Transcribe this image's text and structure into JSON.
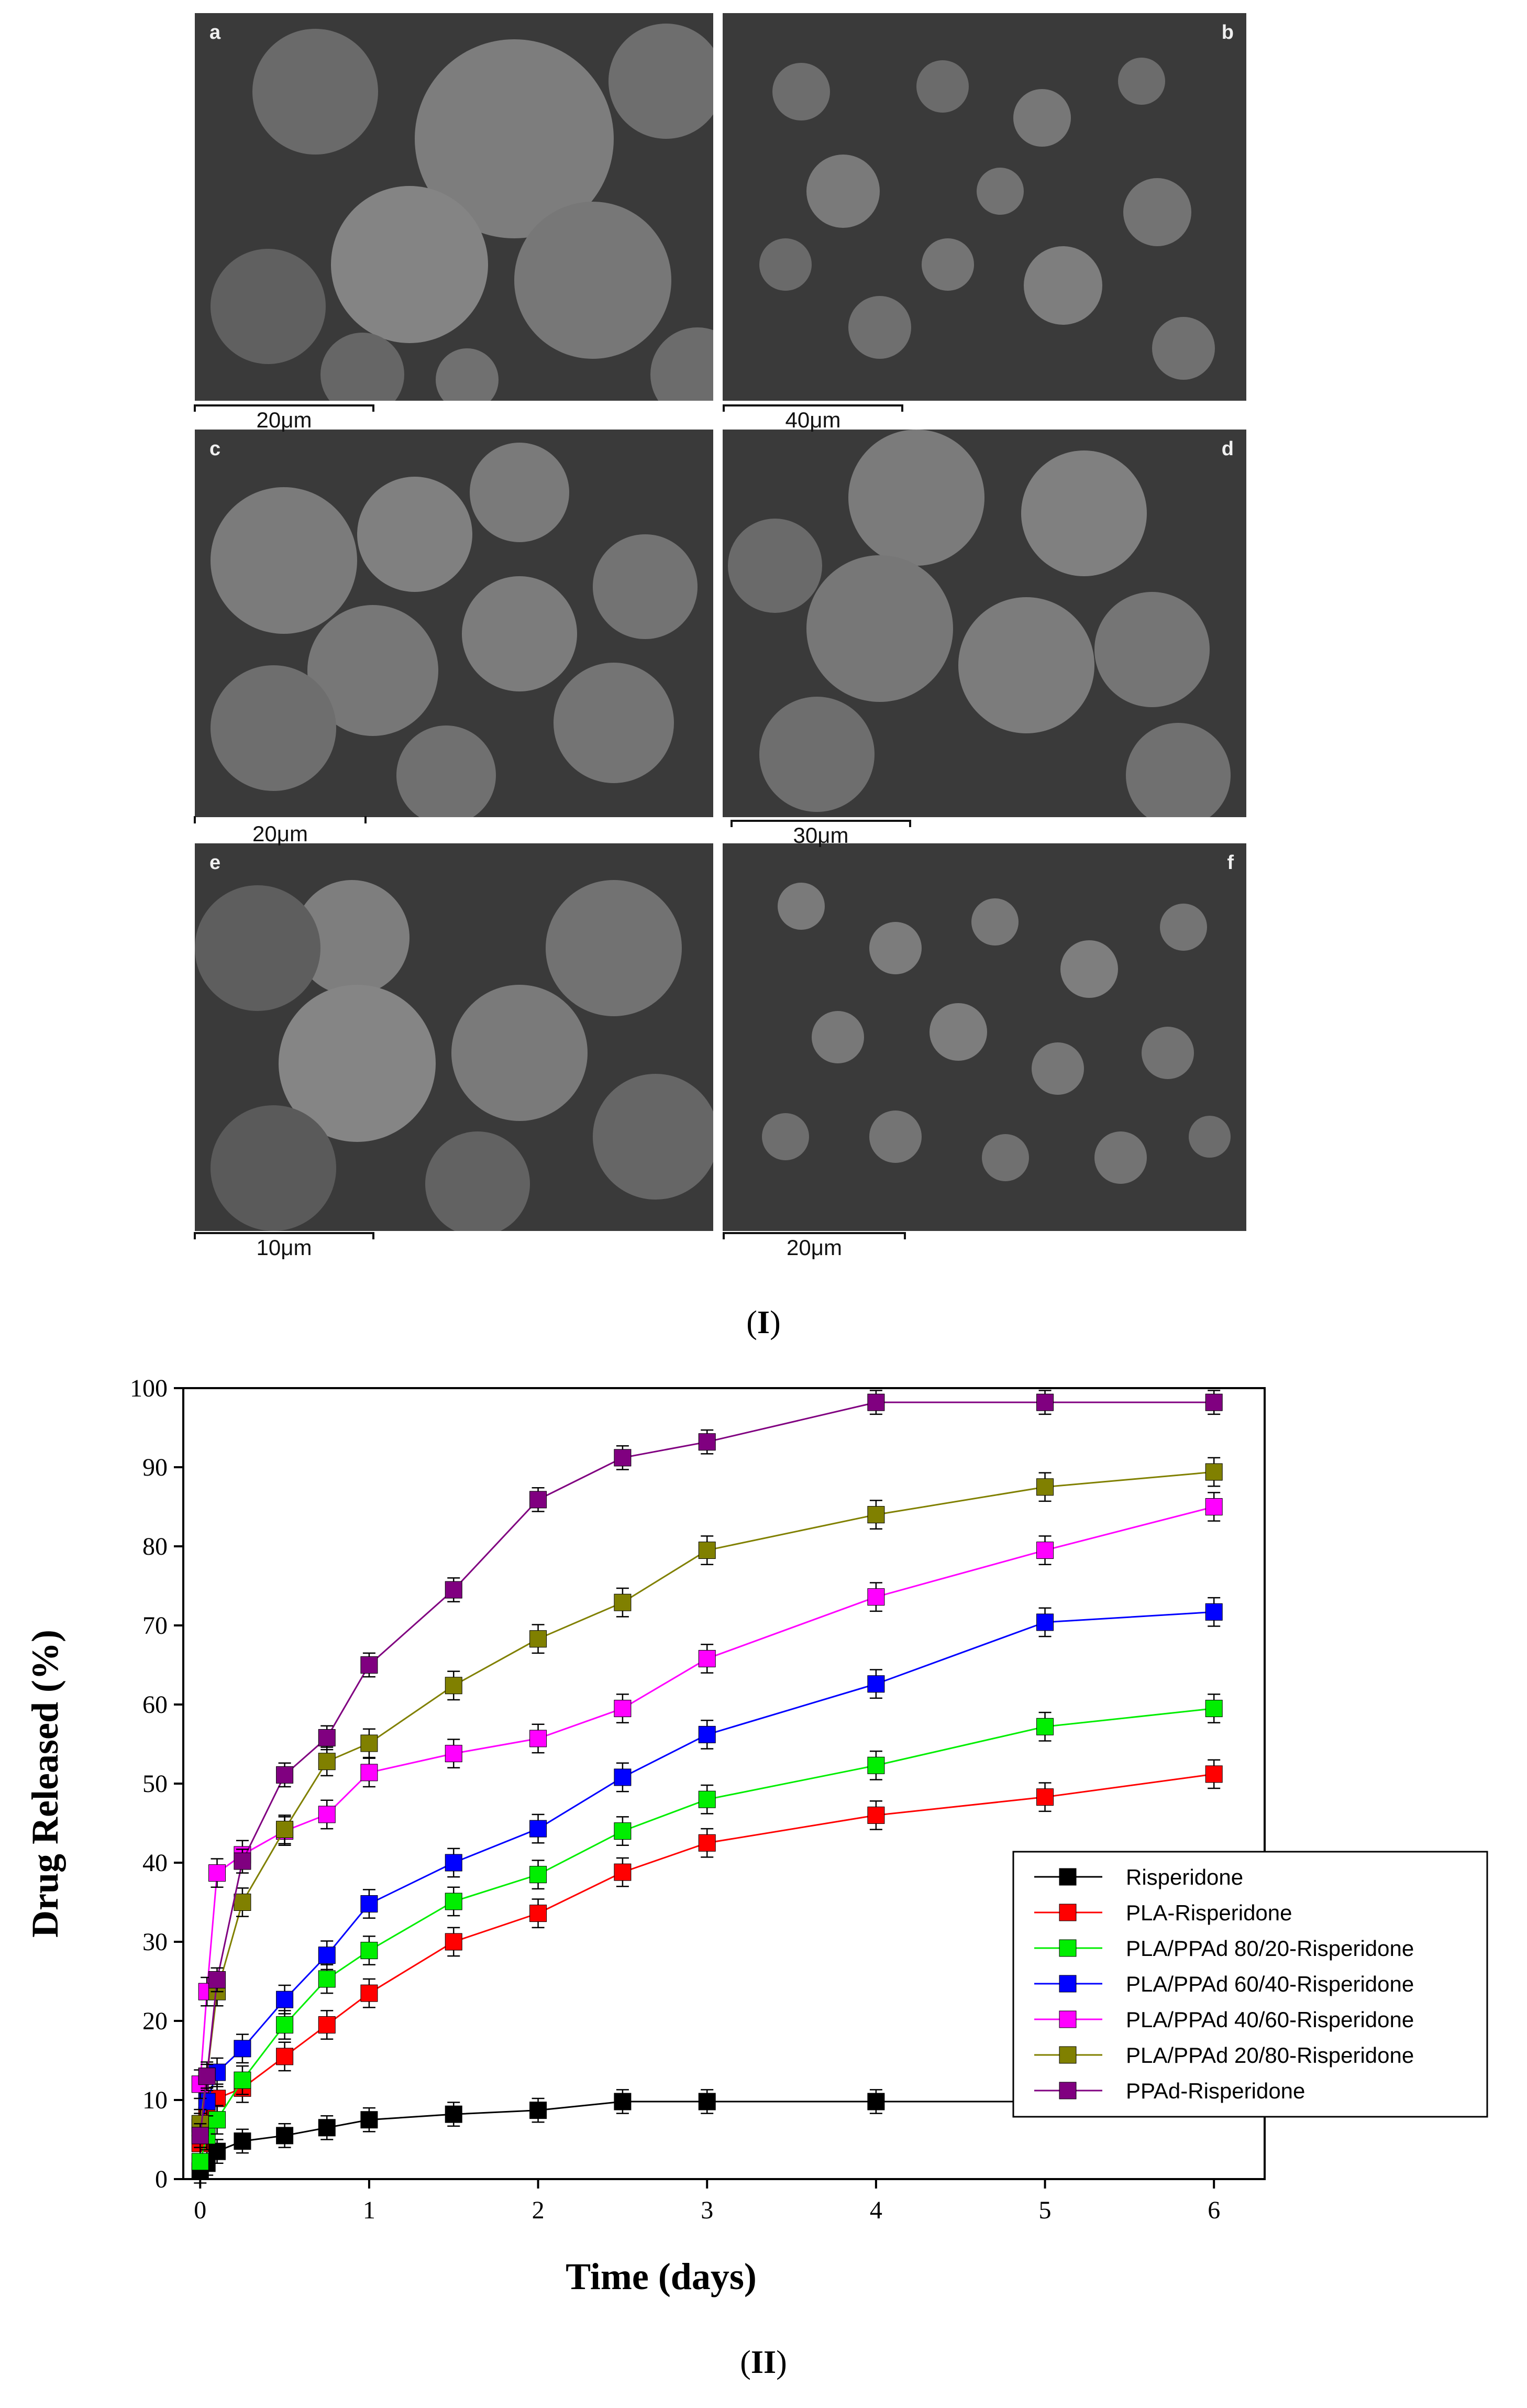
{
  "figure_I": {
    "panels": [
      {
        "letter": "a",
        "scale_label": "20μm"
      },
      {
        "letter": "b",
        "scale_label": "40μm"
      },
      {
        "letter": "c",
        "scale_label": "20μm"
      },
      {
        "letter": "d",
        "scale_label": "30μm"
      },
      {
        "letter": "e",
        "scale_label": "10μm"
      },
      {
        "letter": "f",
        "scale_label": "20μm"
      }
    ],
    "label_open": "(",
    "label_text": "I",
    "label_close": ")"
  },
  "figure_II": {
    "label_open": "(",
    "label_text": "II",
    "label_close": ")"
  },
  "colors": {
    "sem_background": "#3a3a3a",
    "sem_particle": "#8a8a8a"
  },
  "chart_data": {
    "type": "line",
    "title": "",
    "xlabel": "Time (days)",
    "ylabel": "Drug Released (%)",
    "xlim": [
      -0.1,
      6.3
    ],
    "ylim": [
      0,
      100
    ],
    "xticks": [
      0,
      1,
      2,
      3,
      4,
      5,
      6
    ],
    "yticks": [
      0,
      10,
      20,
      30,
      40,
      50,
      60,
      70,
      80,
      90,
      100
    ],
    "grid": false,
    "legend_position": "center-right",
    "x": [
      0,
      0.04,
      0.1,
      0.25,
      0.5,
      0.75,
      1,
      1.5,
      2,
      2.5,
      3,
      4,
      5,
      6
    ],
    "series": [
      {
        "name": "Risperidone",
        "color": "#000000",
        "values": [
          1,
          2,
          3.5,
          4.8,
          5.5,
          6.5,
          7.5,
          8.2,
          8.7,
          9.8,
          9.8,
          9.8,
          9.8,
          9.8
        ],
        "error": 1.5
      },
      {
        "name": "PLA-Risperidone",
        "color": "#ff0000",
        "values": [
          4.5,
          8,
          10.2,
          11.5,
          15.5,
          19.5,
          23.5,
          30,
          33.6,
          38.8,
          42.5,
          46,
          48.3,
          51.2
        ],
        "error": 1.8
      },
      {
        "name": "PLA/PPAd 80/20-Risperidone",
        "color": "#00ee00",
        "values": [
          2.2,
          5.5,
          7.5,
          12.5,
          19.5,
          25.3,
          28.9,
          35.1,
          38.5,
          44,
          48,
          52.3,
          57.2,
          59.5
        ],
        "error": 1.8
      },
      {
        "name": "PLA/PPAd 60/40-Risperidone",
        "color": "#0000ff",
        "values": [
          6.5,
          9.8,
          13.5,
          16.5,
          22.7,
          28.3,
          34.8,
          40,
          44.3,
          50.8,
          56.2,
          62.6,
          70.4,
          71.7
        ],
        "error": 1.8
      },
      {
        "name": "PLA/PPAd 40/60-Risperidone",
        "color": "#ff00ff",
        "values": [
          12,
          23.7,
          38.7,
          41,
          44,
          46.1,
          51.4,
          53.8,
          55.7,
          59.5,
          65.8,
          73.6,
          79.5,
          85
        ],
        "error": 1.8
      },
      {
        "name": "PLA/PPAd 20/80-Risperidone",
        "color": "#808000",
        "values": [
          7,
          13,
          23.7,
          35,
          44.2,
          52.8,
          55.1,
          62.4,
          68.3,
          72.9,
          79.5,
          84,
          87.5,
          89.4
        ],
        "error": 1.8
      },
      {
        "name": "PPAd-Risperidone",
        "color": "#800080",
        "values": [
          5.5,
          13,
          25.2,
          40.2,
          51.1,
          55.8,
          65,
          74.5,
          85.9,
          91.2,
          93.2,
          98.2,
          98.2,
          98.2
        ],
        "error": 1.5
      }
    ]
  }
}
